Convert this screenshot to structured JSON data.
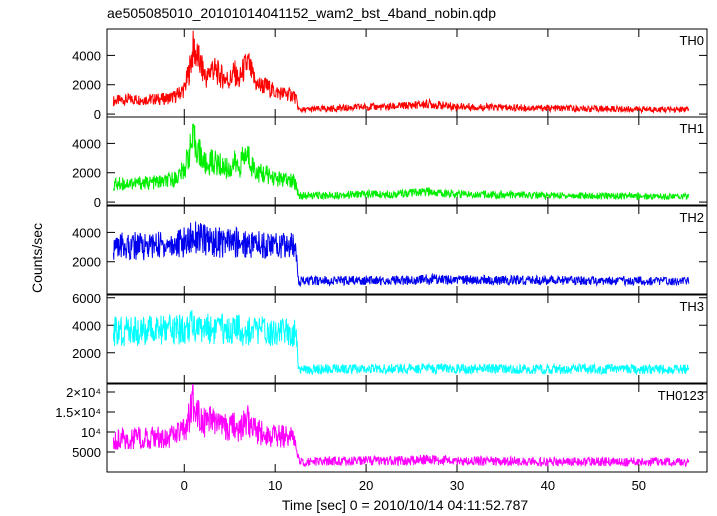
{
  "chart_data": {
    "type": "line",
    "title": "ae505085010_20101014041152_wam2_bst_4band_nobin.qdp",
    "xlabel": "Time [sec] 0 = 2010/10/14 04:11:52.787",
    "ylabel": "Counts/sec",
    "xlim": [
      -8.5,
      57.5
    ],
    "x_ticks": [
      0,
      10,
      20,
      30,
      40,
      50
    ],
    "x_tick_labels": [
      "0",
      "10",
      "20",
      "30",
      "40",
      "50"
    ],
    "grid": false,
    "panels": [
      {
        "name": "TH0",
        "color": "#ff0000",
        "ylim": [
          -200,
          5800
        ],
        "y_ticks": [
          0,
          2000,
          4000
        ],
        "y_tick_labels": [
          "0",
          "2000",
          "4000"
        ],
        "series": {
          "x": [
            -7.8,
            -6,
            -4,
            -2,
            -1,
            0,
            0.5,
            1,
            1.5,
            2,
            2.5,
            3,
            4,
            5,
            5.5,
            6,
            6.5,
            7,
            7.5,
            8,
            9,
            10,
            11,
            12,
            12.3,
            12.6,
            13,
            15,
            18,
            20,
            22,
            24,
            26,
            27,
            28,
            30,
            32,
            35,
            38,
            40,
            45,
            50,
            55.5
          ],
          "y": [
            900,
            1000,
            1000,
            1050,
            1200,
            1700,
            2800,
            4500,
            3800,
            3000,
            2400,
            3200,
            2600,
            2300,
            2900,
            2200,
            3000,
            3500,
            2600,
            2000,
            1900,
            1500,
            1400,
            1300,
            1000,
            300,
            280,
            350,
            420,
            500,
            480,
            550,
            650,
            700,
            600,
            520,
            480,
            450,
            420,
            400,
            360,
            330,
            300
          ]
        }
      },
      {
        "name": "TH1",
        "color": "#00ee00",
        "ylim": [
          -200,
          5800
        ],
        "y_ticks": [
          0,
          2000,
          4000
        ],
        "y_tick_labels": [
          "0",
          "2000",
          "4000"
        ],
        "series": {
          "x": [
            -7.8,
            -6,
            -4,
            -2,
            -1,
            0,
            0.5,
            1,
            1.5,
            2,
            2.5,
            3,
            4,
            5,
            5.5,
            6,
            6.5,
            7,
            7.5,
            8,
            9,
            10,
            11,
            12,
            12.3,
            12.6,
            13,
            15,
            18,
            20,
            22,
            24,
            26,
            27,
            28,
            30,
            32,
            35,
            38,
            40,
            45,
            50,
            55.5
          ],
          "y": [
            1200,
            1300,
            1300,
            1400,
            1600,
            2200,
            3300,
            4200,
            3600,
            2900,
            2400,
            2800,
            2500,
            2200,
            2700,
            2300,
            3000,
            3200,
            2500,
            2000,
            1900,
            1600,
            1500,
            1400,
            1200,
            450,
            420,
            450,
            500,
            550,
            520,
            580,
            650,
            700,
            620,
            560,
            520,
            500,
            470,
            450,
            420,
            400,
            380
          ]
        }
      },
      {
        "name": "TH2",
        "color": "#0000ee",
        "ylim": [
          -200,
          5800
        ],
        "y_ticks": [
          2000,
          4000
        ],
        "y_tick_labels": [
          "2000",
          "4000"
        ],
        "series": {
          "x": [
            -7.8,
            -6,
            -4,
            -2,
            0,
            1,
            2,
            4,
            6,
            8,
            10,
            12,
            12.3,
            12.6,
            13,
            15,
            18,
            20,
            22,
            25,
            27,
            30,
            35,
            40,
            45,
            50,
            55.5
          ],
          "y": [
            3000,
            3050,
            3100,
            3150,
            3300,
            3800,
            3500,
            3300,
            3300,
            3200,
            3100,
            3050,
            3000,
            700,
            680,
            700,
            720,
            740,
            720,
            760,
            800,
            760,
            740,
            720,
            700,
            690,
            680
          ]
        }
      },
      {
        "name": "TH3",
        "color": "#00ffff",
        "ylim": [
          -200,
          6200
        ],
        "y_ticks": [
          2000,
          4000,
          6000
        ],
        "y_tick_labels": [
          "2000",
          "4000",
          "6000"
        ],
        "series": {
          "x": [
            -7.8,
            -6,
            -4,
            -2,
            0,
            1,
            2,
            4,
            6,
            8,
            10,
            12,
            12.3,
            12.6,
            13,
            15,
            18,
            20,
            22,
            25,
            27,
            30,
            35,
            40,
            45,
            50,
            55.5
          ],
          "y": [
            3500,
            3550,
            3600,
            3600,
            3700,
            4000,
            3800,
            3700,
            3650,
            3600,
            3550,
            3500,
            3450,
            800,
            780,
            800,
            820,
            840,
            820,
            860,
            880,
            850,
            830,
            820,
            810,
            800,
            790
          ]
        }
      },
      {
        "name": "TH0123",
        "color": "#ff00ff",
        "ylim": [
          0,
          22000
        ],
        "y_ticks": [
          5000,
          10000,
          15000,
          20000
        ],
        "y_tick_labels": [
          "5000",
          "10⁴",
          "1.5×10⁴",
          "2×10⁴"
        ],
        "series": {
          "x": [
            -7.8,
            -6,
            -4,
            -2,
            -1,
            0,
            0.5,
            1,
            1.5,
            2,
            2.5,
            3,
            4,
            5,
            5.5,
            6,
            6.5,
            7,
            7.5,
            8,
            9,
            10,
            11,
            12,
            12.3,
            12.6,
            13,
            15,
            18,
            20,
            22,
            24,
            26,
            27,
            28,
            30,
            32,
            35,
            38,
            40,
            45,
            50,
            55.5
          ],
          "y": [
            8200,
            8500,
            8600,
            8800,
            9100,
            10200,
            13500,
            17500,
            15500,
            13500,
            11500,
            13000,
            11500,
            10500,
            12500,
            10800,
            12000,
            13000,
            11000,
            10000,
            9600,
            9000,
            8800,
            8600,
            8000,
            2600,
            2500,
            2600,
            2700,
            2800,
            2750,
            2850,
            3000,
            3200,
            2900,
            2800,
            2750,
            2700,
            2650,
            2600,
            2550,
            2500,
            2450
          ]
        }
      }
    ]
  }
}
